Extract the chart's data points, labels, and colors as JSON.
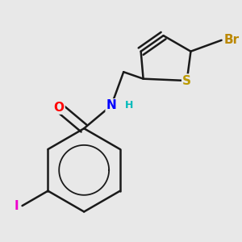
{
  "bg_color": "#e8e8e8",
  "bond_color": "#1a1a1a",
  "bond_width": 1.8,
  "atoms": {
    "O": {
      "color": "#ff0000",
      "size": 11
    },
    "N": {
      "color": "#0000ff",
      "size": 11
    },
    "H": {
      "color": "#00bbbb",
      "size": 9
    },
    "I": {
      "color": "#ee00cc",
      "size": 11
    },
    "Br": {
      "color": "#bb8800",
      "size": 11
    },
    "S": {
      "color": "#bb9900",
      "size": 11
    }
  }
}
